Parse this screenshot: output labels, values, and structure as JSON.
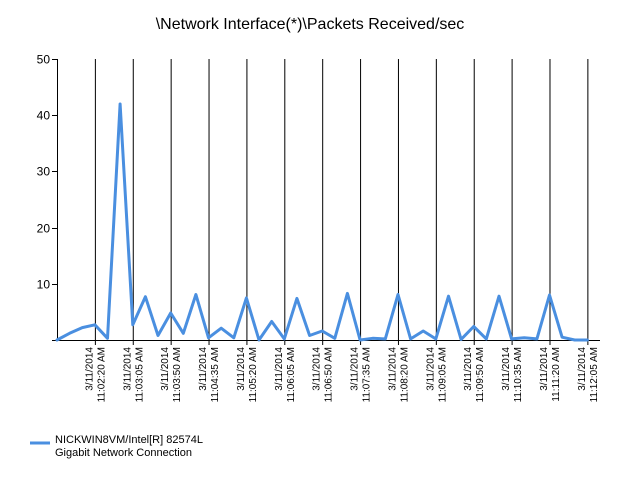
{
  "chart_data": {
    "type": "line",
    "title": "\\Network Interface(*)\\Packets Received/sec",
    "xlabel": "",
    "ylabel": "",
    "ylim": [
      0,
      50
    ],
    "yticks": [
      0,
      10,
      20,
      30,
      40,
      50
    ],
    "grid": "vertical",
    "legend_position": "bottom-left",
    "x_tick_labels": [
      {
        "date": "3/11/2014",
        "time": "11:02:20 AM"
      },
      {
        "date": "3/11/2014",
        "time": "11:03:05 AM"
      },
      {
        "date": "3/11/2014",
        "time": "11:03:50 AM"
      },
      {
        "date": "3/11/2014",
        "time": "11:04:35 AM"
      },
      {
        "date": "3/11/2014",
        "time": "11:05:20 AM"
      },
      {
        "date": "3/11/2014",
        "time": "11:06:05 AM"
      },
      {
        "date": "3/11/2014",
        "time": "11:06:50 AM"
      },
      {
        "date": "3/11/2014",
        "time": "11:07:35 AM"
      },
      {
        "date": "3/11/2014",
        "time": "11:08:20 AM"
      },
      {
        "date": "3/11/2014",
        "time": "11:09:05 AM"
      },
      {
        "date": "3/11/2014",
        "time": "11:09:50 AM"
      },
      {
        "date": "3/11/2014",
        "time": "11:10:35 AM"
      },
      {
        "date": "3/11/2014",
        "time": "11:11:20 AM"
      },
      {
        "date": "3/11/2014",
        "time": "11:12:05 AM"
      }
    ],
    "series": [
      {
        "name": "NICKWIN8VM/Intel[R] 82574L Gigabit Network Connection",
        "color": "#4a8fe0",
        "points": [
          [
            "11:01:35",
            0
          ],
          [
            "11:01:50",
            1.2
          ],
          [
            "11:02:05",
            2.2
          ],
          [
            "11:02:20",
            2.7
          ],
          [
            "11:02:35",
            0.3
          ],
          [
            "11:02:50",
            42.0
          ],
          [
            "11:03:05",
            2.7
          ],
          [
            "11:03:20",
            7.7
          ],
          [
            "11:03:35",
            0.8
          ],
          [
            "11:03:50",
            4.8
          ],
          [
            "11:04:05",
            1.2
          ],
          [
            "11:04:20",
            8.1
          ],
          [
            "11:04:35",
            0.4
          ],
          [
            "11:04:50",
            2.1
          ],
          [
            "11:05:05",
            0.4
          ],
          [
            "11:05:20",
            7.5
          ],
          [
            "11:05:35",
            0
          ],
          [
            "11:05:50",
            3.3
          ],
          [
            "11:06:05",
            0.2
          ],
          [
            "11:06:20",
            7.4
          ],
          [
            "11:06:35",
            0.8
          ],
          [
            "11:06:50",
            1.6
          ],
          [
            "11:07:05",
            0.3
          ],
          [
            "11:07:20",
            8.3
          ],
          [
            "11:07:35",
            0
          ],
          [
            "11:07:50",
            0.3
          ],
          [
            "11:08:05",
            0.2
          ],
          [
            "11:08:20",
            8.1
          ],
          [
            "11:08:35",
            0.2
          ],
          [
            "11:08:50",
            1.6
          ],
          [
            "11:09:05",
            0.2
          ],
          [
            "11:09:20",
            7.8
          ],
          [
            "11:09:35",
            0.1
          ],
          [
            "11:09:50",
            2.4
          ],
          [
            "11:10:05",
            0.2
          ],
          [
            "11:10:20",
            7.8
          ],
          [
            "11:10:35",
            0.2
          ],
          [
            "11:10:50",
            0.4
          ],
          [
            "11:11:05",
            0.2
          ],
          [
            "11:11:20",
            8.0
          ],
          [
            "11:11:35",
            0.5
          ],
          [
            "11:11:50",
            0
          ],
          [
            "11:12:05",
            0
          ]
        ]
      }
    ]
  },
  "legend": {
    "line1": "NICKWIN8VM/Intel[R] 82574L",
    "line2": "Gigabit Network Connection"
  }
}
